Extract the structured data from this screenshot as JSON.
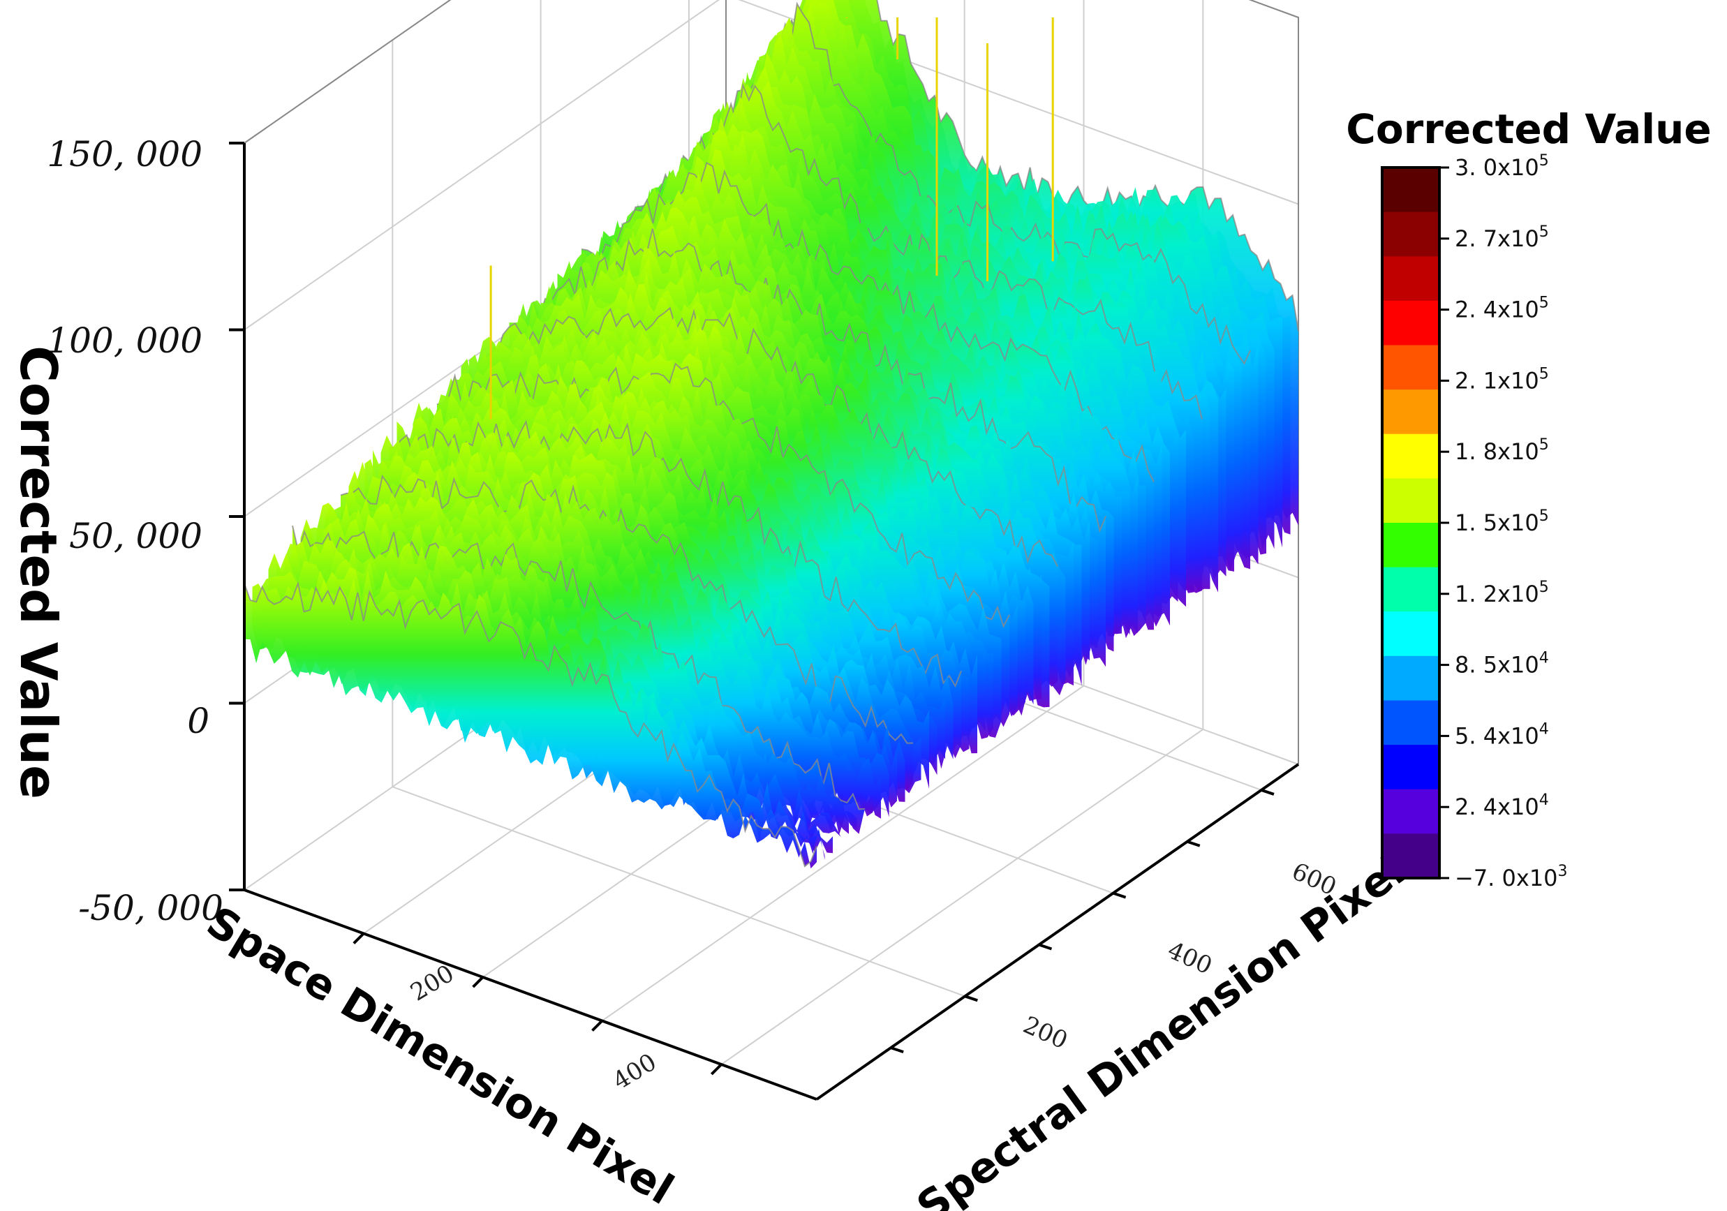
{
  "chart_data": {
    "type": "surface3d",
    "title": "",
    "zlabel": "Corrected Value",
    "xlabel": "Space Dimension Pixel",
    "ylabel": "Spectral Dimension Pixel",
    "zlim": [
      -50000,
      150000
    ],
    "z_ticks": [
      "150, 000",
      "100, 000",
      "50, 000",
      "0",
      "-50, 000"
    ],
    "x_ticks": [
      "200",
      "400"
    ],
    "y_ticks": [
      "200",
      "400",
      "600"
    ],
    "grid": true,
    "colorbar": {
      "title": "Corrected Value",
      "range": [
        -7000,
        300000
      ],
      "labels": [
        {
          "m": "3. 0x10",
          "e": "5"
        },
        {
          "m": "2. 7x10",
          "e": "5"
        },
        {
          "m": "2. 4x10",
          "e": "5"
        },
        {
          "m": "2. 1x10",
          "e": "5"
        },
        {
          "m": "1. 8x10",
          "e": "5"
        },
        {
          "m": "1. 5x10",
          "e": "5"
        },
        {
          "m": "1. 2x10",
          "e": "5"
        },
        {
          "m": "8. 5x10",
          "e": "4"
        },
        {
          "m": "5. 4x10",
          "e": "4"
        },
        {
          "m": "2. 4x10",
          "e": "4"
        },
        {
          "m": "−7. 0x10",
          "e": "3"
        }
      ],
      "colors": [
        "#5a0000",
        "#8b0000",
        "#c00000",
        "#ff0000",
        "#ff5500",
        "#ff9900",
        "#ffff00",
        "#ccff00",
        "#33ff00",
        "#00ffaa",
        "#00ffff",
        "#00aaff",
        "#0055ff",
        "#0000ff",
        "#5500dd",
        "#440088"
      ]
    },
    "surface_profile": {
      "space_pixels": [
        0,
        100,
        200,
        300,
        400,
        480
      ],
      "values_at_spectral_0": [
        30000,
        38000,
        45000,
        40000,
        20000,
        15000
      ],
      "values_at_spectral_300": [
        50000,
        65000,
        80000,
        70000,
        55000,
        45000
      ],
      "values_at_spectral_650": [
        60000,
        125000,
        80000,
        80000,
        95000,
        70000
      ]
    }
  }
}
